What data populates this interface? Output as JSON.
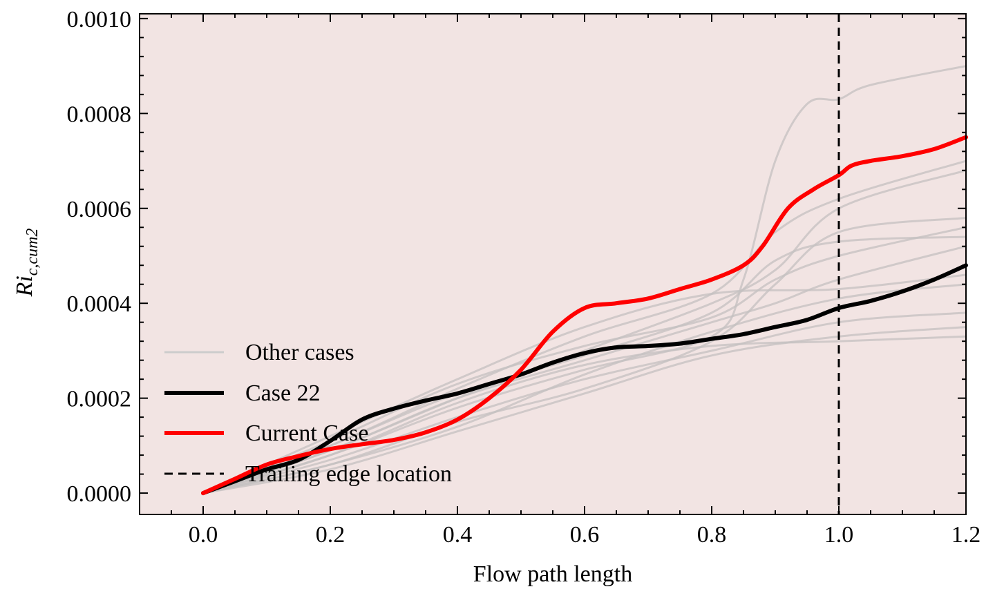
{
  "chart_data": {
    "type": "line",
    "xlabel": "Flow path length",
    "ylabel_main": "Ri",
    "ylabel_sub": "c,cum2",
    "xlim": [
      -0.1,
      1.2
    ],
    "ylim": [
      -4.5e-05,
      0.00101
    ],
    "x_ticks": [
      "0.0",
      "0.2",
      "0.4",
      "0.6",
      "0.8",
      "1.0",
      "1.2"
    ],
    "x_tick_values": [
      0.0,
      0.2,
      0.4,
      0.6,
      0.8,
      1.0,
      1.2
    ],
    "y_ticks": [
      "0.0000",
      "0.0002",
      "0.0004",
      "0.0006",
      "0.0008",
      "0.0010"
    ],
    "y_tick_values": [
      0.0,
      0.0002,
      0.0004,
      0.0006,
      0.0008,
      0.001
    ],
    "plot_background": "#f2e4e3",
    "grid": false,
    "legend_position": "lower-left",
    "legend": [
      {
        "label": "Other cases",
        "color": "#cccccc",
        "style": "solid"
      },
      {
        "label": "Case 22",
        "color": "#000000",
        "style": "solid"
      },
      {
        "label": "Current Case",
        "color": "#ff0000",
        "style": "solid"
      },
      {
        "label": "Trailing edge location",
        "color": "#000000",
        "style": "dashed"
      }
    ],
    "vline": {
      "x": 1.0,
      "color": "#000000",
      "style": "dashed"
    },
    "current_case": {
      "color": "#ff0000",
      "points": [
        [
          0,
          0
        ],
        [
          0.05,
          3e-05
        ],
        [
          0.1,
          6e-05
        ],
        [
          0.15,
          7.8e-05
        ],
        [
          0.2,
          9.3e-05
        ],
        [
          0.25,
          0.000103
        ],
        [
          0.3,
          0.000112
        ],
        [
          0.35,
          0.000128
        ],
        [
          0.4,
          0.000155
        ],
        [
          0.45,
          0.0002
        ],
        [
          0.5,
          0.00026
        ],
        [
          0.55,
          0.00034
        ],
        [
          0.6,
          0.00039
        ],
        [
          0.65,
          0.0004
        ],
        [
          0.7,
          0.00041
        ],
        [
          0.75,
          0.00043
        ],
        [
          0.8,
          0.00045
        ],
        [
          0.85,
          0.00048
        ],
        [
          0.88,
          0.00052
        ],
        [
          0.92,
          0.0006
        ],
        [
          0.96,
          0.00064
        ],
        [
          1.0,
          0.00067
        ],
        [
          1.02,
          0.00069
        ],
        [
          1.05,
          0.0007
        ],
        [
          1.1,
          0.00071
        ],
        [
          1.15,
          0.000725
        ],
        [
          1.2,
          0.00075
        ]
      ]
    },
    "case_22": {
      "color": "#000000",
      "points": [
        [
          0,
          0
        ],
        [
          0.05,
          2.5e-05
        ],
        [
          0.1,
          5e-05
        ],
        [
          0.15,
          7e-05
        ],
        [
          0.2,
          0.00011
        ],
        [
          0.25,
          0.000155
        ],
        [
          0.3,
          0.000178
        ],
        [
          0.35,
          0.000195
        ],
        [
          0.4,
          0.00021
        ],
        [
          0.45,
          0.00023
        ],
        [
          0.5,
          0.00025
        ],
        [
          0.55,
          0.000275
        ],
        [
          0.6,
          0.000295
        ],
        [
          0.65,
          0.000307
        ],
        [
          0.7,
          0.00031
        ],
        [
          0.75,
          0.000315
        ],
        [
          0.8,
          0.000325
        ],
        [
          0.85,
          0.000335
        ],
        [
          0.9,
          0.00035
        ],
        [
          0.95,
          0.000365
        ],
        [
          1.0,
          0.00039
        ],
        [
          1.05,
          0.000405
        ],
        [
          1.1,
          0.000425
        ],
        [
          1.15,
          0.00045
        ],
        [
          1.2,
          0.00048
        ]
      ]
    },
    "other_cases": {
      "color": "#c4c0c0",
      "series": [
        [
          [
            0,
            0
          ],
          [
            0.2,
            8e-05
          ],
          [
            0.4,
            0.00018
          ],
          [
            0.6,
            0.00026
          ],
          [
            0.8,
            0.00033
          ],
          [
            0.85,
            0.00045
          ],
          [
            0.9,
            0.0007
          ],
          [
            0.95,
            0.00082
          ],
          [
            1.0,
            0.00083
          ],
          [
            1.05,
            0.00086
          ],
          [
            1.2,
            0.0009
          ]
        ],
        [
          [
            0,
            0
          ],
          [
            0.2,
            0.0001
          ],
          [
            0.4,
            0.00022
          ],
          [
            0.6,
            0.00033
          ],
          [
            0.8,
            0.00042
          ],
          [
            0.9,
            0.00055
          ],
          [
            1.0,
            0.00062
          ],
          [
            1.2,
            0.0007
          ]
        ],
        [
          [
            0,
            0
          ],
          [
            0.2,
            6e-05
          ],
          [
            0.4,
            0.00015
          ],
          [
            0.6,
            0.00022
          ],
          [
            0.8,
            0.00032
          ],
          [
            0.9,
            0.00044
          ],
          [
            1.0,
            0.00055
          ],
          [
            1.2,
            0.00058
          ]
        ],
        [
          [
            0,
            0
          ],
          [
            0.2,
            9e-05
          ],
          [
            0.4,
            0.0002
          ],
          [
            0.6,
            0.00028
          ],
          [
            0.8,
            0.00036
          ],
          [
            0.9,
            0.0004
          ],
          [
            1.0,
            0.00045
          ],
          [
            1.2,
            0.00052
          ]
        ],
        [
          [
            0,
            0
          ],
          [
            0.2,
            0.00012
          ],
          [
            0.4,
            0.00024
          ],
          [
            0.6,
            0.00035
          ],
          [
            0.8,
            0.00042
          ],
          [
            1.0,
            0.00043
          ],
          [
            1.2,
            0.00046
          ]
        ],
        [
          [
            0,
            0
          ],
          [
            0.2,
            5e-05
          ],
          [
            0.4,
            0.00013
          ],
          [
            0.6,
            0.00021
          ],
          [
            0.8,
            0.00029
          ],
          [
            1.0,
            0.00033
          ],
          [
            1.2,
            0.00035
          ]
        ],
        [
          [
            0,
            0
          ],
          [
            0.2,
            8e-05
          ],
          [
            0.4,
            0.00019
          ],
          [
            0.6,
            0.00027
          ],
          [
            0.8,
            0.00031
          ],
          [
            1.0,
            0.00032
          ],
          [
            1.2,
            0.00033
          ]
        ],
        [
          [
            0,
            0
          ],
          [
            0.2,
            0.00011
          ],
          [
            0.4,
            0.00023
          ],
          [
            0.6,
            0.00031
          ],
          [
            0.8,
            0.00037
          ],
          [
            0.9,
            0.00045
          ],
          [
            1.0,
            0.0005
          ],
          [
            1.2,
            0.00056
          ]
        ],
        [
          [
            0,
            0
          ],
          [
            0.2,
            7e-05
          ],
          [
            0.4,
            0.00016
          ],
          [
            0.6,
            0.00024
          ],
          [
            0.8,
            0.0003
          ],
          [
            1.0,
            0.00036
          ],
          [
            1.2,
            0.00038
          ]
        ],
        [
          [
            0,
            0
          ],
          [
            0.2,
            0.0001
          ],
          [
            0.4,
            0.00021
          ],
          [
            0.6,
            0.00029
          ],
          [
            0.8,
            0.00038
          ],
          [
            0.9,
            0.00049
          ],
          [
            1.0,
            0.00053
          ],
          [
            1.2,
            0.00054
          ]
        ],
        [
          [
            0,
            0
          ],
          [
            0.2,
            9e-05
          ],
          [
            0.4,
            0.0002
          ],
          [
            0.6,
            0.0003
          ],
          [
            0.8,
            0.0004
          ],
          [
            0.9,
            0.00047
          ],
          [
            1.0,
            0.0006
          ],
          [
            1.2,
            0.00068
          ]
        ],
        [
          [
            0,
            0
          ],
          [
            0.2,
            6e-05
          ],
          [
            0.4,
            0.00014
          ],
          [
            0.6,
            0.00025
          ],
          [
            0.8,
            0.00034
          ],
          [
            1.0,
            0.00041
          ],
          [
            1.2,
            0.00044
          ]
        ]
      ]
    }
  }
}
